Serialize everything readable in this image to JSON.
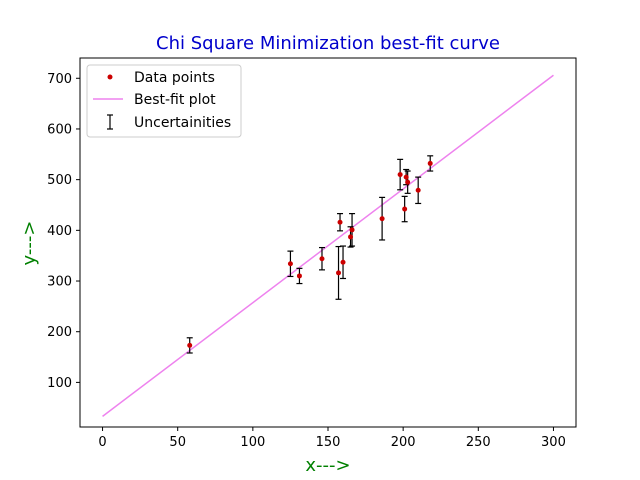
{
  "chart_data": {
    "type": "scatter",
    "title": "Chi Square Minimization best-fit curve",
    "xlabel": "x--->",
    "ylabel": "y--->",
    "xlim": [
      -15,
      315
    ],
    "ylim": [
      12,
      740
    ],
    "xticks": [
      0,
      50,
      100,
      150,
      200,
      250,
      300
    ],
    "yticks": [
      100,
      200,
      300,
      400,
      500,
      600,
      700
    ],
    "legend_position": "top-left",
    "grid": false,
    "series": [
      {
        "name": "Data points",
        "kind": "scatter",
        "color": "#cc0000",
        "points": [
          {
            "x": 58,
            "y": 173,
            "err": 15
          },
          {
            "x": 125,
            "y": 334,
            "err": 25
          },
          {
            "x": 131,
            "y": 310,
            "err": 15
          },
          {
            "x": 146,
            "y": 344,
            "err": 22
          },
          {
            "x": 157,
            "y": 316,
            "err": 52
          },
          {
            "x": 158,
            "y": 416,
            "err": 17
          },
          {
            "x": 160,
            "y": 337,
            "err": 32
          },
          {
            "x": 165,
            "y": 387,
            "err": 20
          },
          {
            "x": 166,
            "y": 401,
            "err": 32
          },
          {
            "x": 186,
            "y": 423,
            "err": 42
          },
          {
            "x": 198,
            "y": 510,
            "err": 30
          },
          {
            "x": 201,
            "y": 442,
            "err": 25
          },
          {
            "x": 202,
            "y": 505,
            "err": 15
          },
          {
            "x": 203,
            "y": 495,
            "err": 22
          },
          {
            "x": 210,
            "y": 479,
            "err": 26
          },
          {
            "x": 218,
            "y": 532,
            "err": 15
          }
        ]
      },
      {
        "name": "Best-fit plot",
        "kind": "line",
        "color": "#ee82ee",
        "x": [
          0,
          300
        ],
        "y": [
          33,
          706
        ]
      },
      {
        "name": "Uncertainities",
        "kind": "errorbar",
        "color": "#000000"
      }
    ]
  }
}
